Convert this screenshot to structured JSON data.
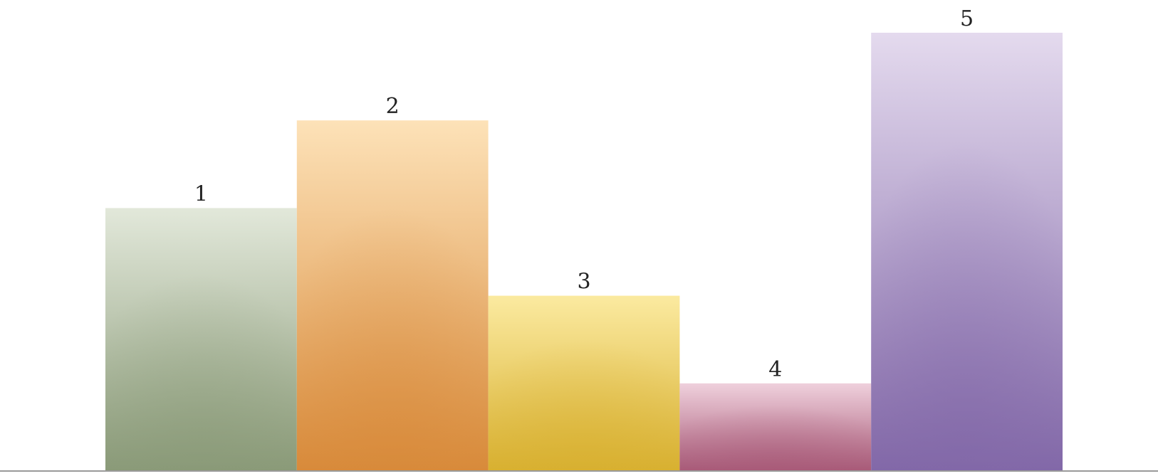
{
  "chart_data": {
    "type": "bar",
    "title": "",
    "xlabel": "",
    "ylabel": "",
    "categories": [
      "1",
      "2",
      "3",
      "4",
      "5"
    ],
    "values": [
      3,
      4,
      2,
      1,
      5
    ],
    "data_labels": [
      "1",
      "2",
      "3",
      "4",
      "5"
    ],
    "ylim": [
      0,
      5
    ],
    "grid": false,
    "legend": "none",
    "colors": [
      {
        "top": "#e2e8da",
        "bottom": "#8a9a78"
      },
      {
        "top": "#fde2b8",
        "bottom": "#d88a3a"
      },
      {
        "top": "#fbeaa0",
        "bottom": "#d8b030"
      },
      {
        "top": "#efd0dc",
        "bottom": "#a85a78"
      },
      {
        "top": "#e4daee",
        "bottom": "#8268a8"
      }
    ],
    "axis_color": "#9a9a9a"
  }
}
